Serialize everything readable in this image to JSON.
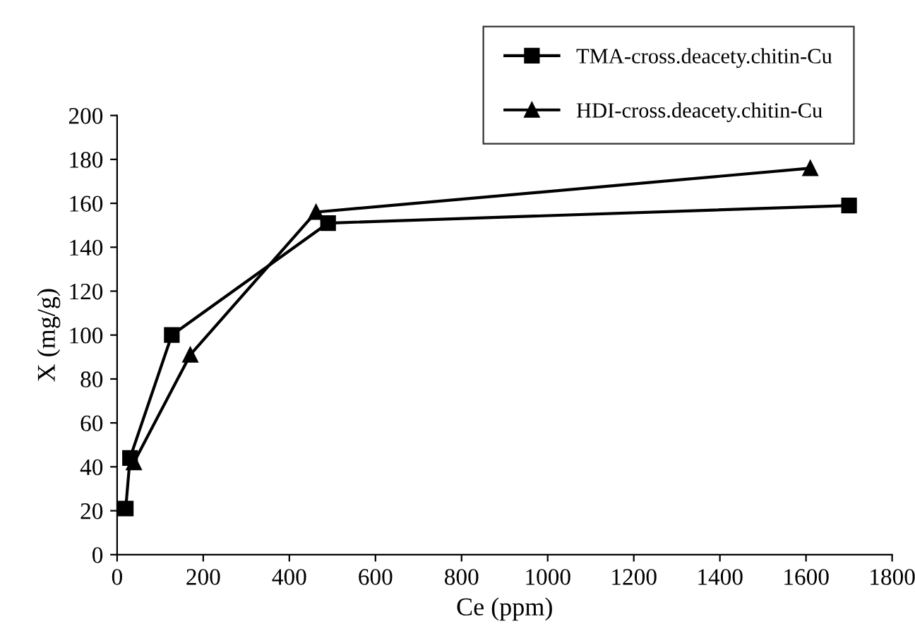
{
  "chart_data": {
    "type": "line",
    "xlabel": "Ce (ppm)",
    "ylabel": "X (mg/g)",
    "xlim": [
      0,
      1800
    ],
    "xticks": [
      0,
      200,
      400,
      600,
      800,
      1000,
      1200,
      1400,
      1600,
      1800
    ],
    "ylim": [
      0,
      200
    ],
    "yticks": [
      0,
      20,
      40,
      60,
      80,
      100,
      120,
      140,
      160,
      180,
      200
    ],
    "grid": false,
    "legend": "top right",
    "line_style": "solid",
    "series": [
      {
        "name": "TMA-cross.deacety.chitin-Cu",
        "color": "#000000",
        "marker": "square",
        "x": [
          20,
          30,
          127,
          490,
          1700
        ],
        "values": [
          21,
          44,
          100,
          151,
          159
        ]
      },
      {
        "name": "HDI-cross.deacety.chitin-Cu",
        "color": "#000000",
        "marker": "triangle",
        "x": [
          39,
          170,
          462,
          1610
        ],
        "values": [
          42,
          91,
          156,
          176
        ]
      }
    ]
  }
}
